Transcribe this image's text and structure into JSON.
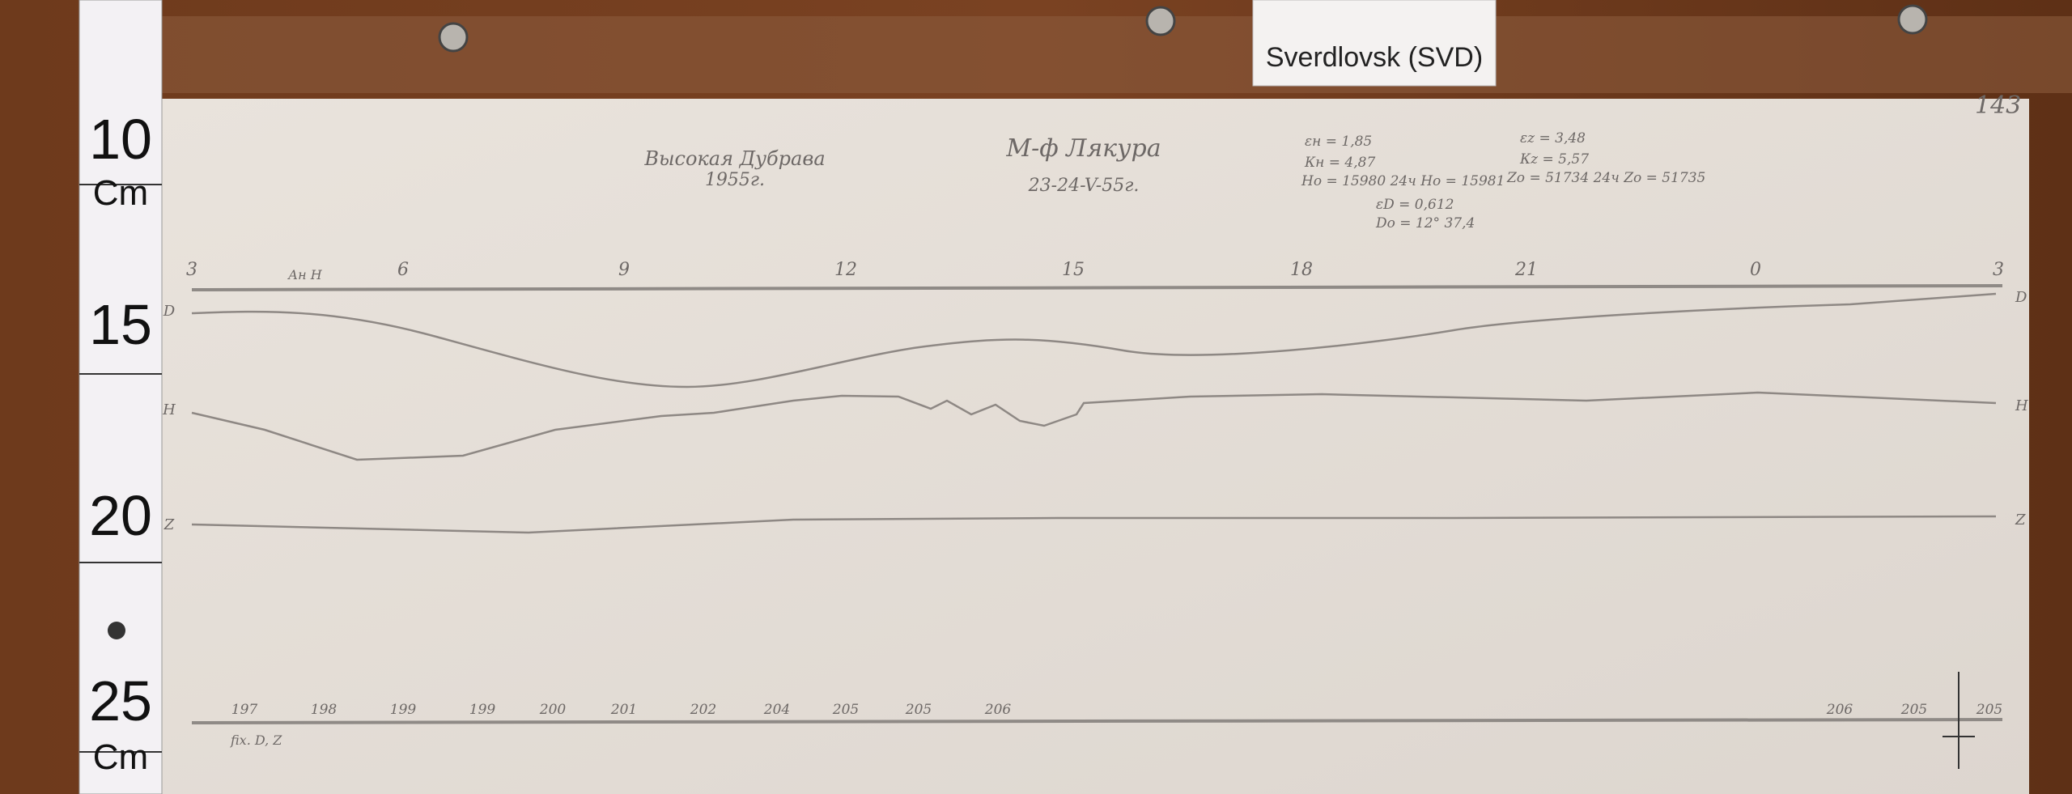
{
  "label": "Sverdlovsk (SVD)",
  "sheet_number": "143",
  "ruler": [
    "10",
    "Cm",
    "15",
    "20",
    "25",
    "Cm"
  ],
  "header": {
    "station": "Высокая Дубрава",
    "year": "1955г.",
    "observer": "М-ф Лякура",
    "dates": "23-24-V-55г.",
    "parameters": [
      "εн = 1,85",
      "Кн = 4,87",
      "Hо = 15980 24ч Hо = 15981",
      "εD = 0,612",
      "Dо = 12° 37,4",
      "εz = 3,48",
      "Кz = 5,57",
      "Zо = 51734 24ч Zо = 51735"
    ]
  },
  "hour_labels": [
    "3",
    "6",
    "9",
    "12",
    "15",
    "18",
    "21",
    "0",
    "3"
  ],
  "axis_note": "Ан H",
  "trace_labels": {
    "left": [
      "D",
      "H",
      "Z"
    ],
    "right": [
      "D",
      "H",
      "Z"
    ]
  },
  "baseline_labels": [
    "197",
    "198",
    "199",
    "199",
    "200",
    "201",
    "202",
    "204",
    "205",
    "205",
    "206",
    "206",
    "205",
    "205"
  ],
  "baseline_note": "fix. D, Z"
}
